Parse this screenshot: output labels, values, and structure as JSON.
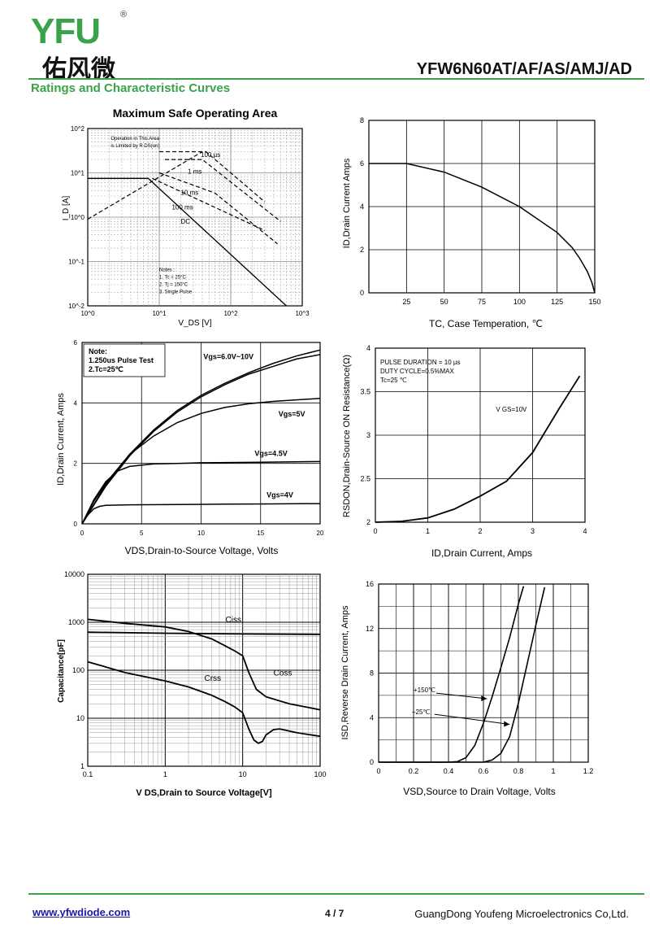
{
  "header": {
    "logo_text": "YFU",
    "logo_reg": "®",
    "logo_cn": "佑风微",
    "part_number": "YFW6N60AT/AF/AS/AMJ/AD",
    "section_title": "Ratings and Characteristic Curves",
    "brand_color": "#3aa34a"
  },
  "footer": {
    "url": "www.yfwdiode.com",
    "page": "4 / 7",
    "company": "GuangDong Youfeng Microelectronics Co,Ltd."
  },
  "chart_data": [
    {
      "id": "soa",
      "type": "line",
      "title": "Maximum Safe Operating Area",
      "xlabel": "V_DS [V]",
      "ylabel": "I_D [A]",
      "xscale": "log",
      "yscale": "log",
      "xlim": [
        1,
        1000
      ],
      "ylim": [
        0.01,
        100
      ],
      "xticks": [
        "10^0",
        "10^1",
        "10^2",
        "10^3"
      ],
      "yticks": [
        "10^-2",
        "10^-1",
        "10^0",
        "10^1",
        "10^2"
      ],
      "grid": true,
      "annotations": [
        "Operation in This Area is Limited by R DS(on)",
        "Notes :",
        "1. Tc = 25°C",
        "2. Tj = 150°C",
        "3. Single Pulse"
      ],
      "series": [
        {
          "name": "100 µs",
          "style": "dashed",
          "points": [
            [
              10,
              30
            ],
            [
              45,
              30
            ],
            [
              300,
              2.2
            ]
          ]
        },
        {
          "name": "1 ms",
          "style": "dashed",
          "points": [
            [
              12,
              20
            ],
            [
              40,
              20
            ],
            [
              500,
              0.8
            ]
          ]
        },
        {
          "name": "10 ms",
          "style": "dashed",
          "points": [
            [
              10,
              10
            ],
            [
              60,
              3.5
            ],
            [
              450,
              0.25
            ]
          ]
        },
        {
          "name": "100 ms",
          "style": "dashed",
          "points": [
            [
              8,
              7.5
            ],
            [
              300,
              0.5
            ]
          ]
        },
        {
          "name": "DC",
          "style": "solid",
          "points": [
            [
              1,
              7.5
            ],
            [
              7,
              7.5
            ],
            [
              600,
              0.01
            ]
          ]
        },
        {
          "name": "R DS(on) limit",
          "style": "dashed",
          "points": [
            [
              1,
              0.9
            ],
            [
              40,
              30
            ]
          ]
        }
      ]
    },
    {
      "id": "id-tc",
      "type": "line",
      "xlabel": "TC, Case Temperation, ℃",
      "ylabel": "ID,Drain Current Amps",
      "xlim": [
        0,
        150
      ],
      "ylim": [
        0,
        8
      ],
      "xticks": [
        25,
        50,
        75,
        100,
        125,
        150
      ],
      "yticks": [
        0,
        2,
        4,
        6,
        8
      ],
      "grid": true,
      "series": [
        {
          "name": "",
          "x": [
            0,
            25,
            50,
            75,
            100,
            125,
            135,
            140,
            145,
            148,
            150
          ],
          "y": [
            6,
            6,
            5.6,
            4.9,
            4.0,
            2.8,
            2.1,
            1.6,
            1.0,
            0.5,
            0
          ]
        }
      ]
    },
    {
      "id": "output",
      "type": "line",
      "xlabel": "VDS,Drain-to-Source Voltage, Volts",
      "ylabel": "ID,Drain Current, Amps",
      "xlim": [
        0,
        20
      ],
      "ylim": [
        0,
        6
      ],
      "xticks": [
        0,
        5,
        10,
        15,
        20
      ],
      "yticks": [
        0,
        2,
        4,
        6
      ],
      "grid": true,
      "note": [
        "Note:",
        "1.250us Pulse Test",
        "2.Tc=25℃"
      ],
      "series": [
        {
          "name": "Vgs=6.0V~10V",
          "x": [
            0,
            2,
            4,
            6,
            8,
            10,
            12,
            14,
            16,
            18,
            20
          ],
          "y": [
            0,
            1.3,
            2.3,
            3.1,
            3.75,
            4.25,
            4.65,
            5.0,
            5.3,
            5.55,
            5.75
          ]
        },
        {
          "name": "Vgs=6.0V~10V",
          "x": [
            0,
            2,
            4,
            6,
            8,
            10,
            12,
            14,
            16,
            18,
            20
          ],
          "y": [
            0,
            1.25,
            2.25,
            3.05,
            3.7,
            4.2,
            4.6,
            4.95,
            5.2,
            5.45,
            5.6
          ]
        },
        {
          "name": "Vgs=5V",
          "x": [
            0,
            1,
            2,
            4,
            6,
            8,
            10,
            12,
            14,
            16,
            18,
            20
          ],
          "y": [
            0,
            0.75,
            1.35,
            2.3,
            2.9,
            3.35,
            3.65,
            3.85,
            3.97,
            4.05,
            4.1,
            4.15
          ]
        },
        {
          "name": "Vgs=4.5V",
          "x": [
            0,
            1,
            2,
            3,
            4,
            6,
            8,
            10,
            15,
            20
          ],
          "y": [
            0,
            0.8,
            1.4,
            1.75,
            1.9,
            1.98,
            2.0,
            2.02,
            2.04,
            2.06
          ]
        },
        {
          "name": "Vgs=4V",
          "x": [
            0,
            0.5,
            1,
            1.5,
            2,
            4,
            8,
            12,
            16,
            20
          ],
          "y": [
            0,
            0.3,
            0.5,
            0.58,
            0.61,
            0.63,
            0.64,
            0.65,
            0.66,
            0.67
          ]
        }
      ]
    },
    {
      "id": "rdson",
      "type": "line",
      "xlabel": "ID,Drain Current, Amps",
      "ylabel": "RSDON,Drain-Source ON Resistance(Ω)",
      "xlim": [
        0,
        4
      ],
      "ylim": [
        2,
        4
      ],
      "xticks": [
        0,
        1,
        2,
        3,
        4
      ],
      "yticks": [
        2,
        2.5,
        3,
        3.5,
        4
      ],
      "grid": true,
      "note": [
        "PULSE DURATION = 10 µs",
        "DUTY CYCLE=0.5%MAX",
        "Tc=25 ℃"
      ],
      "annotation": "V GS=10V",
      "series": [
        {
          "name": "V GS=10V",
          "x": [
            0,
            0.5,
            1,
            1.5,
            2,
            2.5,
            3,
            3.5,
            3.9
          ],
          "y": [
            2.0,
            2.01,
            2.05,
            2.15,
            2.3,
            2.47,
            2.8,
            3.3,
            3.68
          ]
        }
      ]
    },
    {
      "id": "capacitance",
      "type": "line",
      "xlabel": "V DS,Drain to Source Voltage[V]",
      "ylabel": "Capacitance[pF]",
      "xscale": "log",
      "yscale": "log",
      "xlim": [
        0.1,
        100
      ],
      "ylim": [
        1,
        10000
      ],
      "xticks": [
        "0.1",
        "1",
        "10",
        "100"
      ],
      "yticks": [
        "1",
        "10",
        "100",
        "1000",
        "10000"
      ],
      "grid": true,
      "series": [
        {
          "name": "Ciss",
          "x": [
            0.1,
            1,
            10,
            100
          ],
          "y": [
            620,
            590,
            570,
            560
          ]
        },
        {
          "name": "Coss",
          "x": [
            0.1,
            0.3,
            1,
            2,
            4,
            6,
            8,
            10,
            12,
            15,
            20,
            40,
            100
          ],
          "y": [
            1150,
            950,
            800,
            640,
            450,
            320,
            250,
            200,
            90,
            40,
            28,
            20,
            15
          ]
        },
        {
          "name": "Crss",
          "x": [
            0.1,
            0.3,
            1,
            2,
            4,
            6,
            8,
            10,
            12,
            14,
            16,
            18,
            20,
            25,
            30,
            50,
            100
          ],
          "y": [
            150,
            90,
            60,
            45,
            30,
            22,
            17,
            13,
            6,
            3.5,
            3.0,
            3.3,
            4.5,
            5.8,
            6.0,
            5.0,
            4.2
          ]
        }
      ]
    },
    {
      "id": "body-diode",
      "type": "line",
      "xlabel": "VSD,Source to Drain Voltage, Volts",
      "ylabel": "ISD,Reverse Drain Current, Amps",
      "xlim": [
        0,
        1.2
      ],
      "ylim": [
        0,
        16
      ],
      "xticks": [
        "0",
        "0.2",
        "0.4",
        "0.6",
        "0.8",
        "1",
        "1.2"
      ],
      "yticks": [
        0,
        4,
        8,
        12,
        16
      ],
      "grid": true,
      "series": [
        {
          "name": "+150℃",
          "x": [
            0,
            0.4,
            0.45,
            0.5,
            0.55,
            0.6,
            0.65,
            0.7,
            0.75,
            0.8,
            0.83
          ],
          "y": [
            0,
            0,
            0.05,
            0.4,
            1.5,
            3.5,
            5.9,
            8.5,
            11.2,
            14.2,
            15.8
          ]
        },
        {
          "name": "+25℃",
          "x": [
            0,
            0.6,
            0.65,
            0.7,
            0.75,
            0.8,
            0.85,
            0.9,
            0.95
          ],
          "y": [
            0,
            0,
            0.2,
            0.8,
            2.3,
            5.3,
            8.8,
            12.3,
            15.7
          ]
        }
      ]
    }
  ]
}
